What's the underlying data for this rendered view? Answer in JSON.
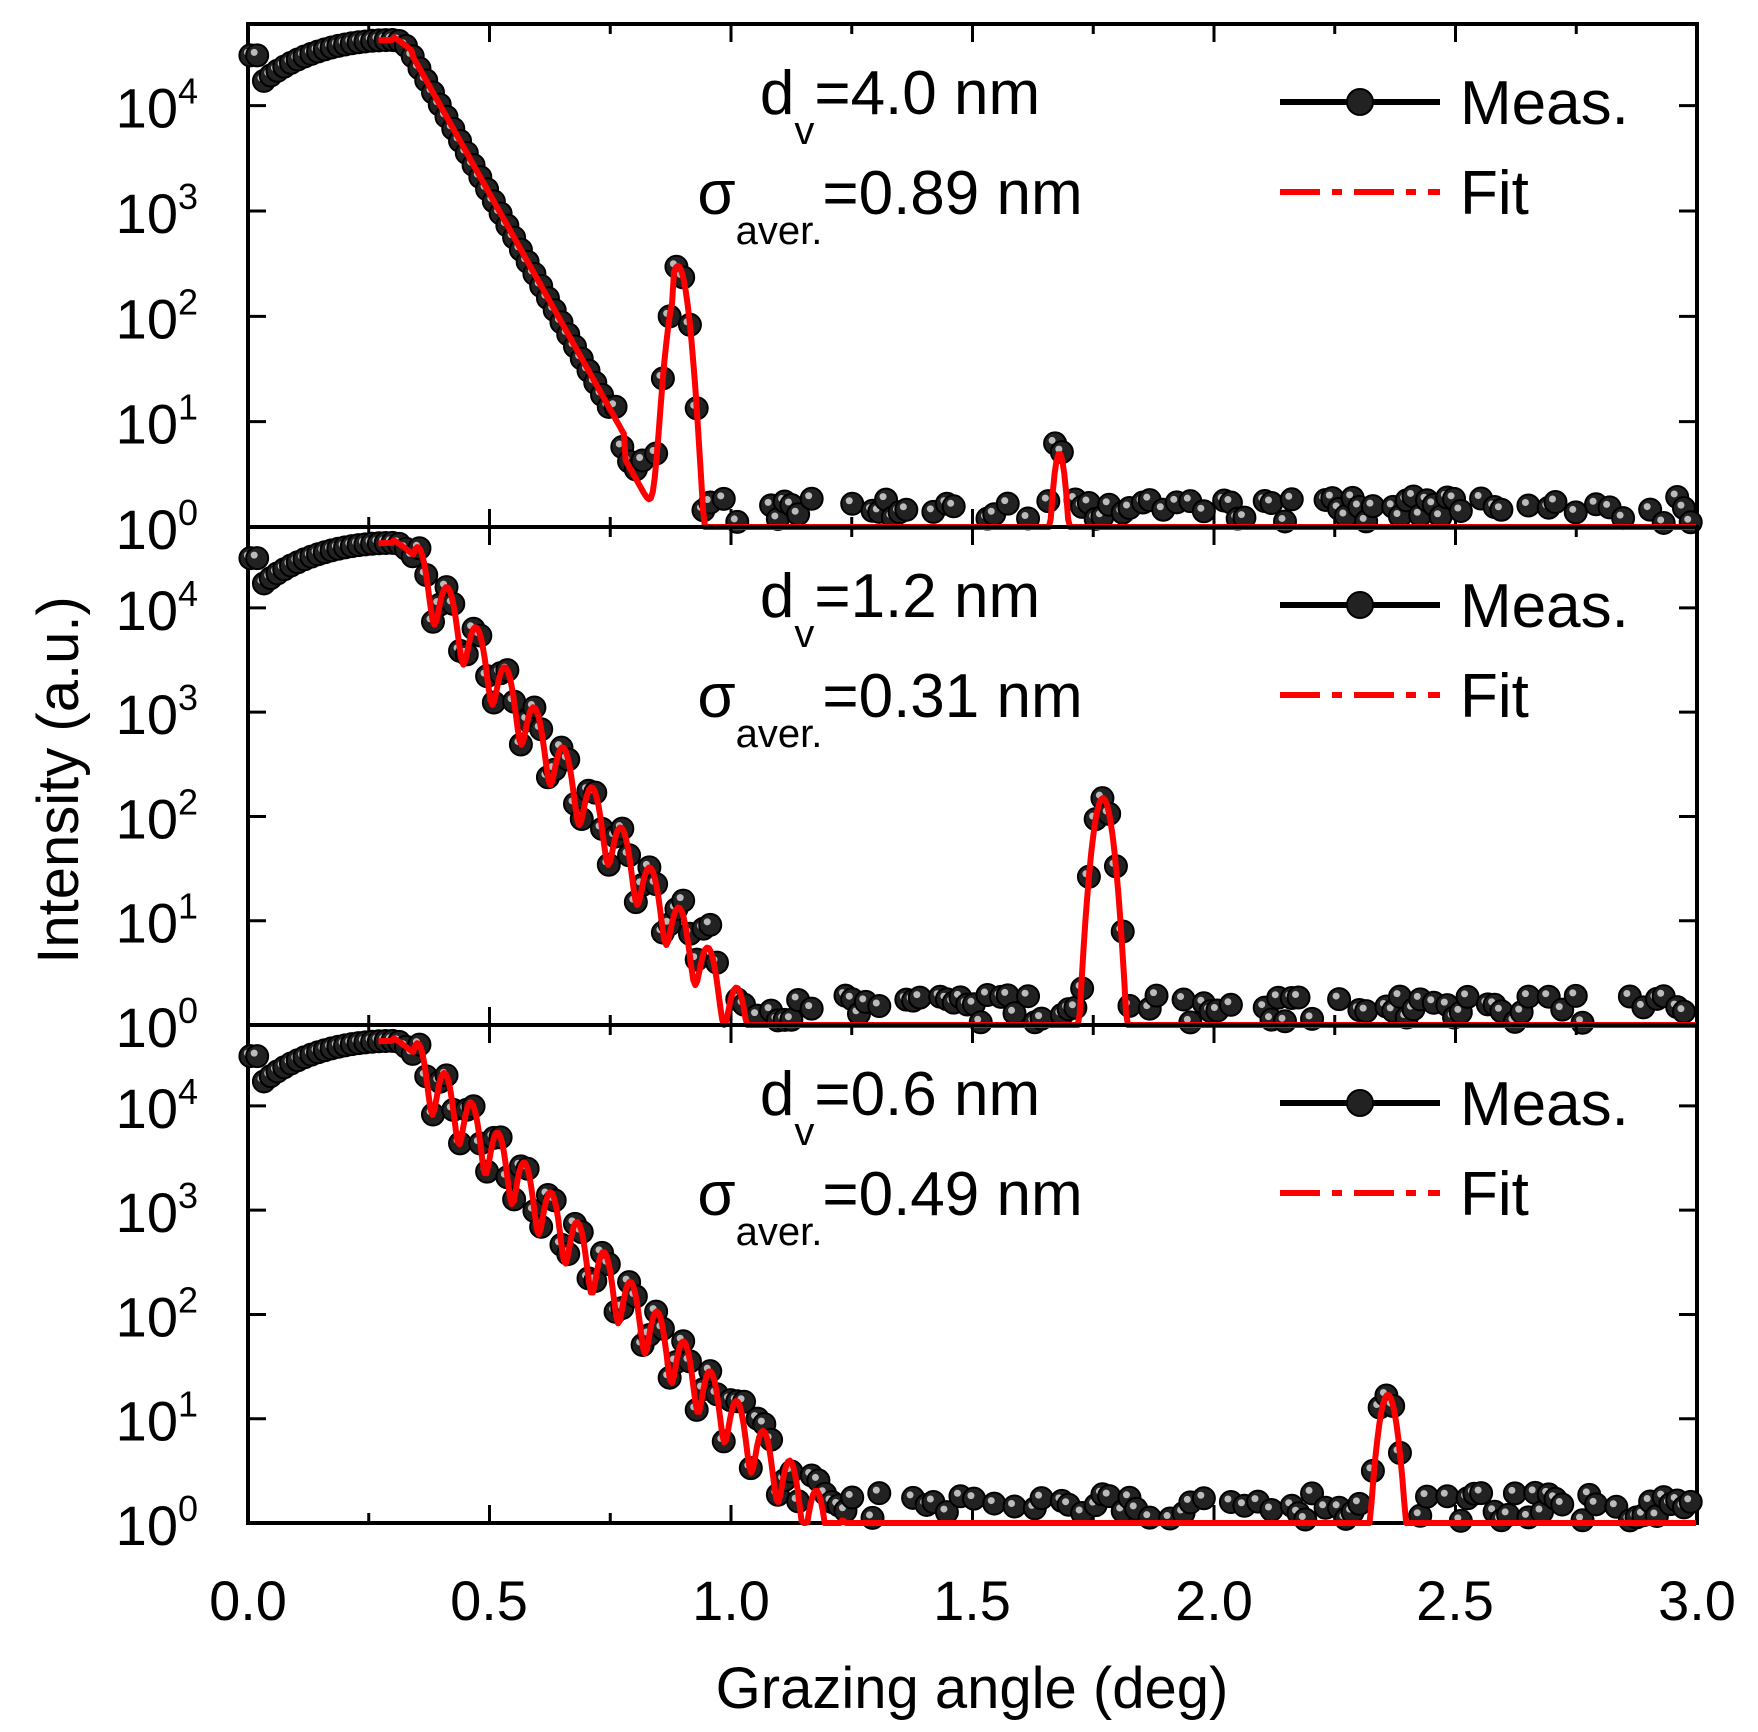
{
  "chart_data": [
    {
      "type": "scatter",
      "panel": "top",
      "xlabel": "Grazing angle (deg)",
      "ylabel": "Intensity (a.u.)",
      "xlim": [
        0.0,
        3.0
      ],
      "ylim": [
        1,
        50000
      ],
      "yscale": "log",
      "x_ticks": [
        "0.0",
        "0.5",
        "1.0",
        "1.5",
        "2.0",
        "2.5",
        "3.0"
      ],
      "y_ticks": [
        {
          "base": "10",
          "exp": "0"
        },
        {
          "base": "10",
          "exp": "1"
        },
        {
          "base": "10",
          "exp": "2"
        },
        {
          "base": "10",
          "exp": "3"
        },
        {
          "base": "10",
          "exp": "4"
        }
      ],
      "annotation": {
        "d_sym": "d",
        "d_sub": "v",
        "d_value": "=4.0 nm",
        "s_sym": "σ",
        "s_sub": "aver.",
        "s_value": "=0.89 nm"
      },
      "legend": {
        "meas": "Meas.",
        "fit": "Fit",
        "position": "top-right"
      },
      "params": {
        "peak1_x": 0.89,
        "peak1_y": 300,
        "peak2_x": 1.68,
        "peak2_y": 5,
        "decay_min_x": 0.84,
        "fringe_period": 0,
        "tail_level": 1.0
      },
      "series": [
        {
          "name": "Meas.",
          "color": "#000000"
        },
        {
          "name": "Fit",
          "color": "#ff0000"
        }
      ]
    },
    {
      "type": "scatter",
      "panel": "middle",
      "xlim": [
        0.0,
        3.0
      ],
      "ylim": [
        1,
        50000
      ],
      "yscale": "log",
      "y_ticks": [
        {
          "base": "10",
          "exp": "0"
        },
        {
          "base": "10",
          "exp": "1"
        },
        {
          "base": "10",
          "exp": "2"
        },
        {
          "base": "10",
          "exp": "3"
        },
        {
          "base": "10",
          "exp": "4"
        }
      ],
      "annotation": {
        "d_sym": "d",
        "d_sub": "v",
        "d_value": "=1.2 nm",
        "s_sym": "σ",
        "s_sub": "aver.",
        "s_value": "=0.31 nm"
      },
      "legend": {
        "meas": "Meas.",
        "fit": "Fit",
        "position": "top-right"
      },
      "params": {
        "peak1_x": 1.77,
        "peak1_y": 150,
        "fringe_period": 0.06,
        "tail_level": 1.0
      },
      "series": [
        {
          "name": "Meas.",
          "color": "#000000"
        },
        {
          "name": "Fit",
          "color": "#ff0000"
        }
      ]
    },
    {
      "type": "scatter",
      "panel": "bottom",
      "xlim": [
        0.0,
        3.0
      ],
      "ylim": [
        1,
        50000
      ],
      "yscale": "log",
      "y_ticks": [
        {
          "base": "10",
          "exp": "0"
        },
        {
          "base": "10",
          "exp": "1"
        },
        {
          "base": "10",
          "exp": "2"
        },
        {
          "base": "10",
          "exp": "3"
        },
        {
          "base": "10",
          "exp": "4"
        }
      ],
      "annotation": {
        "d_sym": "d",
        "d_sub": "v",
        "d_value": "=0.6 nm",
        "s_sym": "σ",
        "s_sub": "aver.",
        "s_value": "=0.49 nm"
      },
      "legend": {
        "meas": "Meas.",
        "fit": "Fit",
        "position": "top-right"
      },
      "params": {
        "peak1_x": 2.36,
        "peak1_y": 17,
        "fringe_period": 0.055,
        "tail_level": 1.0
      },
      "series": [
        {
          "name": "Meas.",
          "color": "#000000"
        },
        {
          "name": "Fit",
          "color": "#ff0000"
        }
      ]
    }
  ]
}
